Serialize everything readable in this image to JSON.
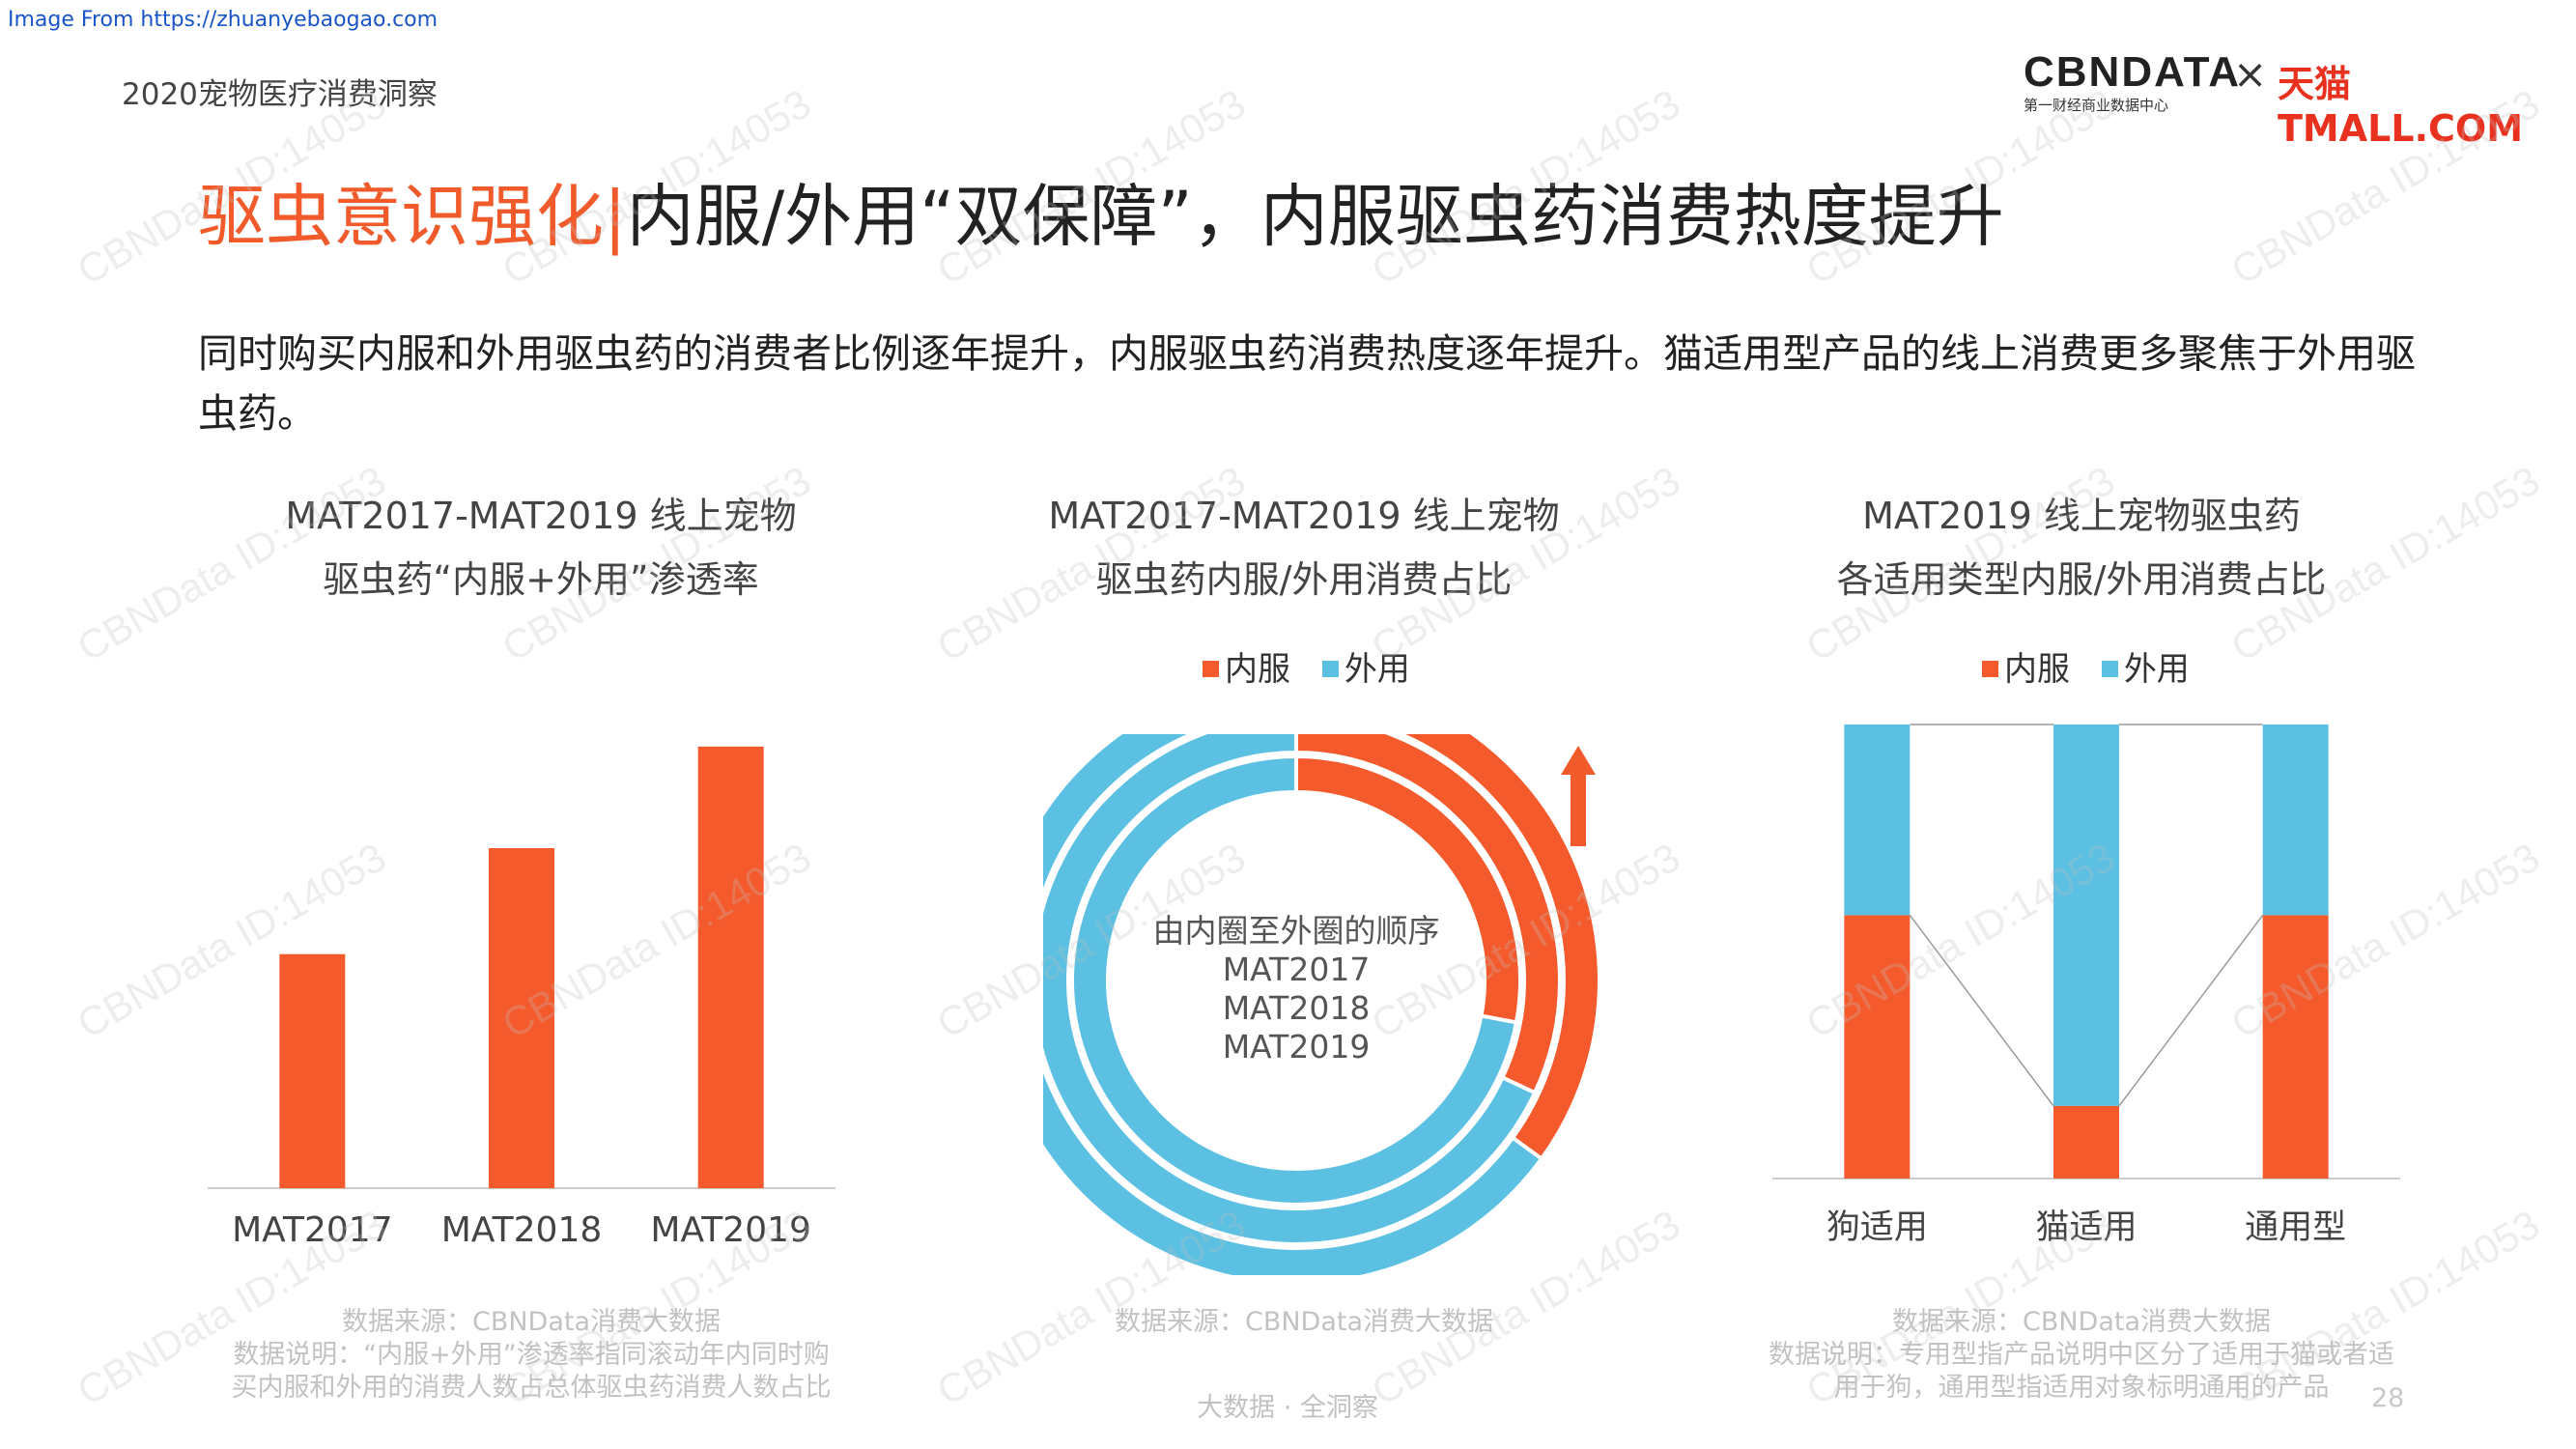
{
  "header": {
    "source_link": "Image From https://zhuanyebaogao.com",
    "deck_title": "2020宠物医疗消费洞察",
    "logo_cbn": "CBΝDATA",
    "logo_cbn_sub": "第一财经商业数据中心",
    "logo_x": "×",
    "logo_tmall": "天猫TMALL.COM"
  },
  "title": {
    "accent": "驱虫意识强化|",
    "rest": "内服/外用“双保障”，内服驱虫药消费热度提升"
  },
  "intro": "同时购买内服和外用驱虫药的消费者比例逐年提升，内服驱虫药消费热度逐年提升。猫适用型产品的线上消费更多聚焦于外用驱虫药。",
  "colors": {
    "internal": "#f55a2c",
    "external": "#5bc0e2",
    "axis": "#cccccc",
    "arrow": "#f15a2b"
  },
  "chart_data": [
    {
      "type": "bar",
      "title_lines": [
        "MAT2017-MAT2019 线上宠物",
        "驱虫药“内服+外用”渗透率"
      ],
      "categories": [
        "MAT2017",
        "MAT2018",
        "MAT2019"
      ],
      "values": [
        0.53,
        0.77,
        1.0
      ],
      "ylim": [
        0,
        1.05
      ],
      "grid": false,
      "notes": [
        "数据来源：CBNData消费大数据",
        "数据说明：“内服+外用”渗透率指同滚动年内同时购",
        "买内服和外用的消费人数占总体驱虫药消费人数占比"
      ]
    },
    {
      "type": "pie",
      "variant": "multi-ring-donut",
      "title_lines": [
        "MAT2017-MAT2019 线上宠物",
        "驱虫药内服/外用消费占比"
      ],
      "legend": [
        "内服",
        "外用"
      ],
      "center_text": [
        "由内圈至外圈的顺序",
        "MAT2017",
        "MAT2018",
        "MAT2019"
      ],
      "series": [
        {
          "name": "MAT2017",
          "values": [
            0.28,
            0.72
          ]
        },
        {
          "name": "MAT2018",
          "values": [
            0.32,
            0.68
          ]
        },
        {
          "name": "MAT2019",
          "values": [
            0.35,
            0.65
          ]
        }
      ],
      "notes": [
        "数据来源：CBNData消费大数据"
      ]
    },
    {
      "type": "bar",
      "variant": "stacked-100",
      "title_lines": [
        "MAT2019 线上宠物驱虫药",
        "各适用类型内服/外用消费占比"
      ],
      "legend": [
        "内服",
        "外用"
      ],
      "categories": [
        "狗适用",
        "猫适用",
        "通用型"
      ],
      "series": [
        {
          "name": "内服",
          "values": [
            0.58,
            0.16,
            0.58
          ]
        },
        {
          "name": "外用",
          "values": [
            0.42,
            0.84,
            0.42
          ]
        }
      ],
      "ylim": [
        0,
        1
      ],
      "notes": [
        "数据来源：CBNData消费大数据",
        "数据说明：专用型指产品说明中区分了适用于猫或者适",
        "用于狗，通用型指适用对象标明通用的产品"
      ]
    }
  ],
  "footer": {
    "tagline": "大数据 · 全洞察",
    "page_number": "28"
  },
  "watermark": "CBNData ID:14053"
}
